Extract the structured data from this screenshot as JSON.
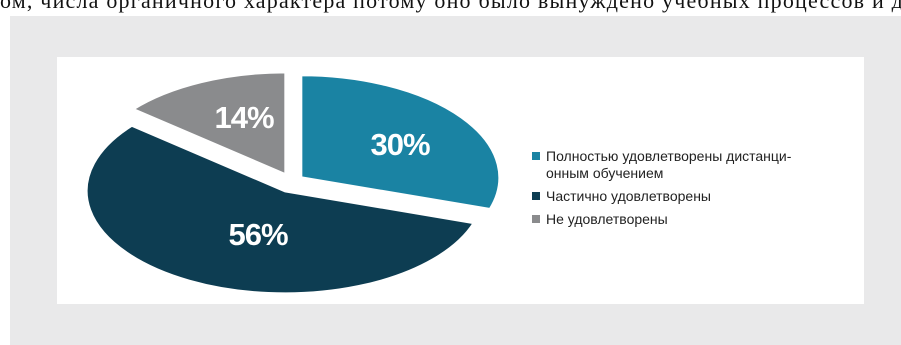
{
  "header_text": "ом, числа органичного характера потому оно было вынуждено учебных процессов и др.",
  "chart_data": {
    "type": "pie",
    "title": "",
    "slices": [
      {
        "label": "Полностью удовлетворены дистанци-онным обучением",
        "value": 30,
        "display": "30%",
        "color": "#1a83a3"
      },
      {
        "label": "Частично удовлетворены",
        "value": 56,
        "display": "56%",
        "color": "#0d3d52"
      },
      {
        "label": "Не удовлетворены",
        "value": 14,
        "display": "14%",
        "color": "#8a8b8d"
      }
    ],
    "legend_position": "right"
  },
  "legend": {
    "items": [
      {
        "line1": "Полностью удовлетворены дистанци-",
        "line2": "онным обучением",
        "color": "#1a83a3"
      },
      {
        "line1": "Частично удовлетворены",
        "line2": "",
        "color": "#0d3d52"
      },
      {
        "line1": "Не удовлетворены",
        "line2": "",
        "color": "#8a8b8d"
      }
    ]
  }
}
